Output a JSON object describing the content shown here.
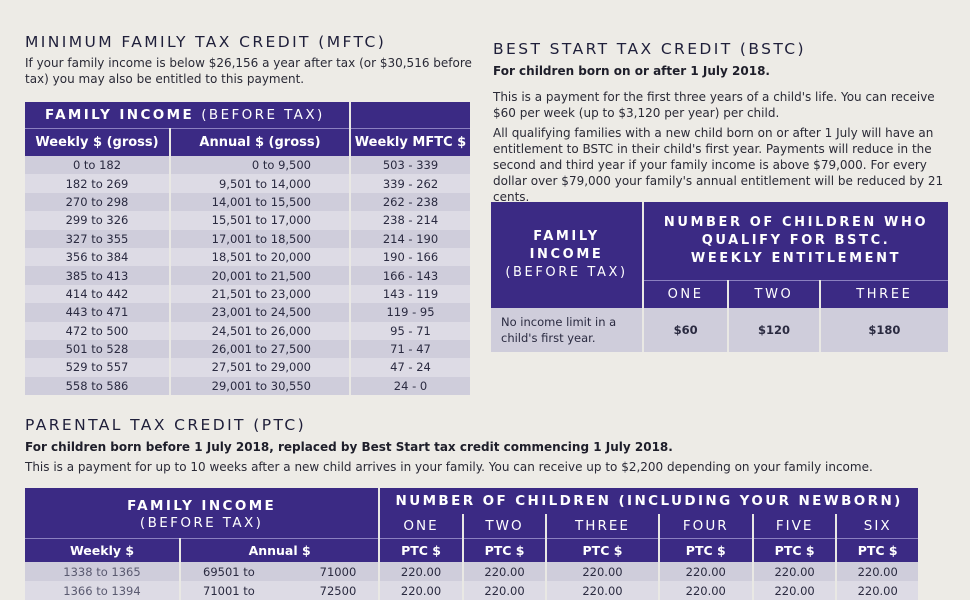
{
  "mftc": {
    "title": "MINIMUM FAMILY TAX CREDIT (MFTC)",
    "intro": "If your family income is below $26,156 a year after tax (or $30,516 before tax) you may also be entitled to this payment.",
    "group_header_bold": "FAMILY INCOME",
    "group_header_thin": "(BEFORE TAX)",
    "col_weekly": "Weekly $ (gross)",
    "col_annual": "Annual $ (gross)",
    "col_mftc": "Weekly MFTC $",
    "rows": [
      {
        "weekly": "0 to 182",
        "annual": "0 to 9,500",
        "mftc": "503 - 339"
      },
      {
        "weekly": "182 to 269",
        "annual": "9,501 to 14,000",
        "mftc": "339 - 262"
      },
      {
        "weekly": "270 to 298",
        "annual": "14,001 to 15,500",
        "mftc": "262 - 238"
      },
      {
        "weekly": "299 to 326",
        "annual": "15,501 to 17,000",
        "mftc": "238 - 214"
      },
      {
        "weekly": "327 to 355",
        "annual": "17,001 to 18,500",
        "mftc": "214 - 190"
      },
      {
        "weekly": "356 to 384",
        "annual": "18,501 to 20,000",
        "mftc": "190 - 166"
      },
      {
        "weekly": "385 to 413",
        "annual": "20,001 to 21,500",
        "mftc": "166 - 143"
      },
      {
        "weekly": "414 to 442",
        "annual": "21,501 to 23,000",
        "mftc": "143 - 119"
      },
      {
        "weekly": "443 to 471",
        "annual": "23,001 to 24,500",
        "mftc": "119 - 95"
      },
      {
        "weekly": "472 to 500",
        "annual": "24,501 to 26,000",
        "mftc": "95 - 71"
      },
      {
        "weekly": "501 to 528",
        "annual": "26,001 to 27,500",
        "mftc": "71 - 47"
      },
      {
        "weekly": "529 to 557",
        "annual": "27,501 to 29,000",
        "mftc": "47 - 24"
      },
      {
        "weekly": "558 to 586",
        "annual": "29,001 to 30,550",
        "mftc": "24 - 0"
      }
    ]
  },
  "bstc": {
    "title": "BEST START TAX CREDIT (BSTC)",
    "subtitle": "For children born on or after 1 July 2018.",
    "p1": "This is a payment for the first three years of a child's life. You can receive $60 per week (up to $3,120 per year) per child.",
    "p2": "All qualifying families with a new child born on or after 1 July will have an entitlement to BSTC in their child's first year. Payments will reduce in the second and third year if your family income is above $79,000. For every dollar over $79,000 your family's annual entitlement will be reduced by 21 cents.",
    "fi_line1": "FAMILY",
    "fi_line2": "INCOME",
    "fi_line3": "(BEFORE TAX)",
    "nc_line1": "NUMBER OF CHILDREN WHO",
    "nc_line2": "QUALIFY FOR BSTC.",
    "nc_line3": "WEEKLY ENTITLEMENT",
    "counts": [
      "ONE",
      "TWO",
      "THREE"
    ],
    "row_label_1": "No income limit in a",
    "row_label_2": "child's first year.",
    "values": [
      "$60",
      "$120",
      "$180"
    ]
  },
  "ptc": {
    "title": "PARENTAL TAX CREDIT (PTC)",
    "subtitle": "For children born before 1 July 2018, replaced by Best Start tax credit commencing 1 July 2018.",
    "p1": "This is a payment for up to 10 weeks after a new child arrives in your family. You can receive up to $2,200 depending on your family income.",
    "fi_line1": "FAMILY INCOME",
    "fi_line2": "(BEFORE TAX)",
    "nc": "NUMBER OF CHILDREN (INCLUDING YOUR NEWBORN)",
    "counts": [
      "ONE",
      "TWO",
      "THREE",
      "FOUR",
      "FIVE",
      "SIX"
    ],
    "col_weekly": "Weekly $",
    "col_annual": "Annual $",
    "col_ptc": "PTC $",
    "rows": [
      {
        "weekly": "1338 to 1365",
        "annual_from": "69501 to",
        "annual_to": "71000",
        "values": [
          "220.00",
          "220.00",
          "220.00",
          "220.00",
          "220.00",
          "220.00"
        ]
      },
      {
        "weekly": "1366 to 1394",
        "annual_from": "71001 to",
        "annual_to": "72500",
        "values": [
          "220.00",
          "220.00",
          "220.00",
          "220.00",
          "220.00",
          "220.00"
        ]
      }
    ]
  }
}
